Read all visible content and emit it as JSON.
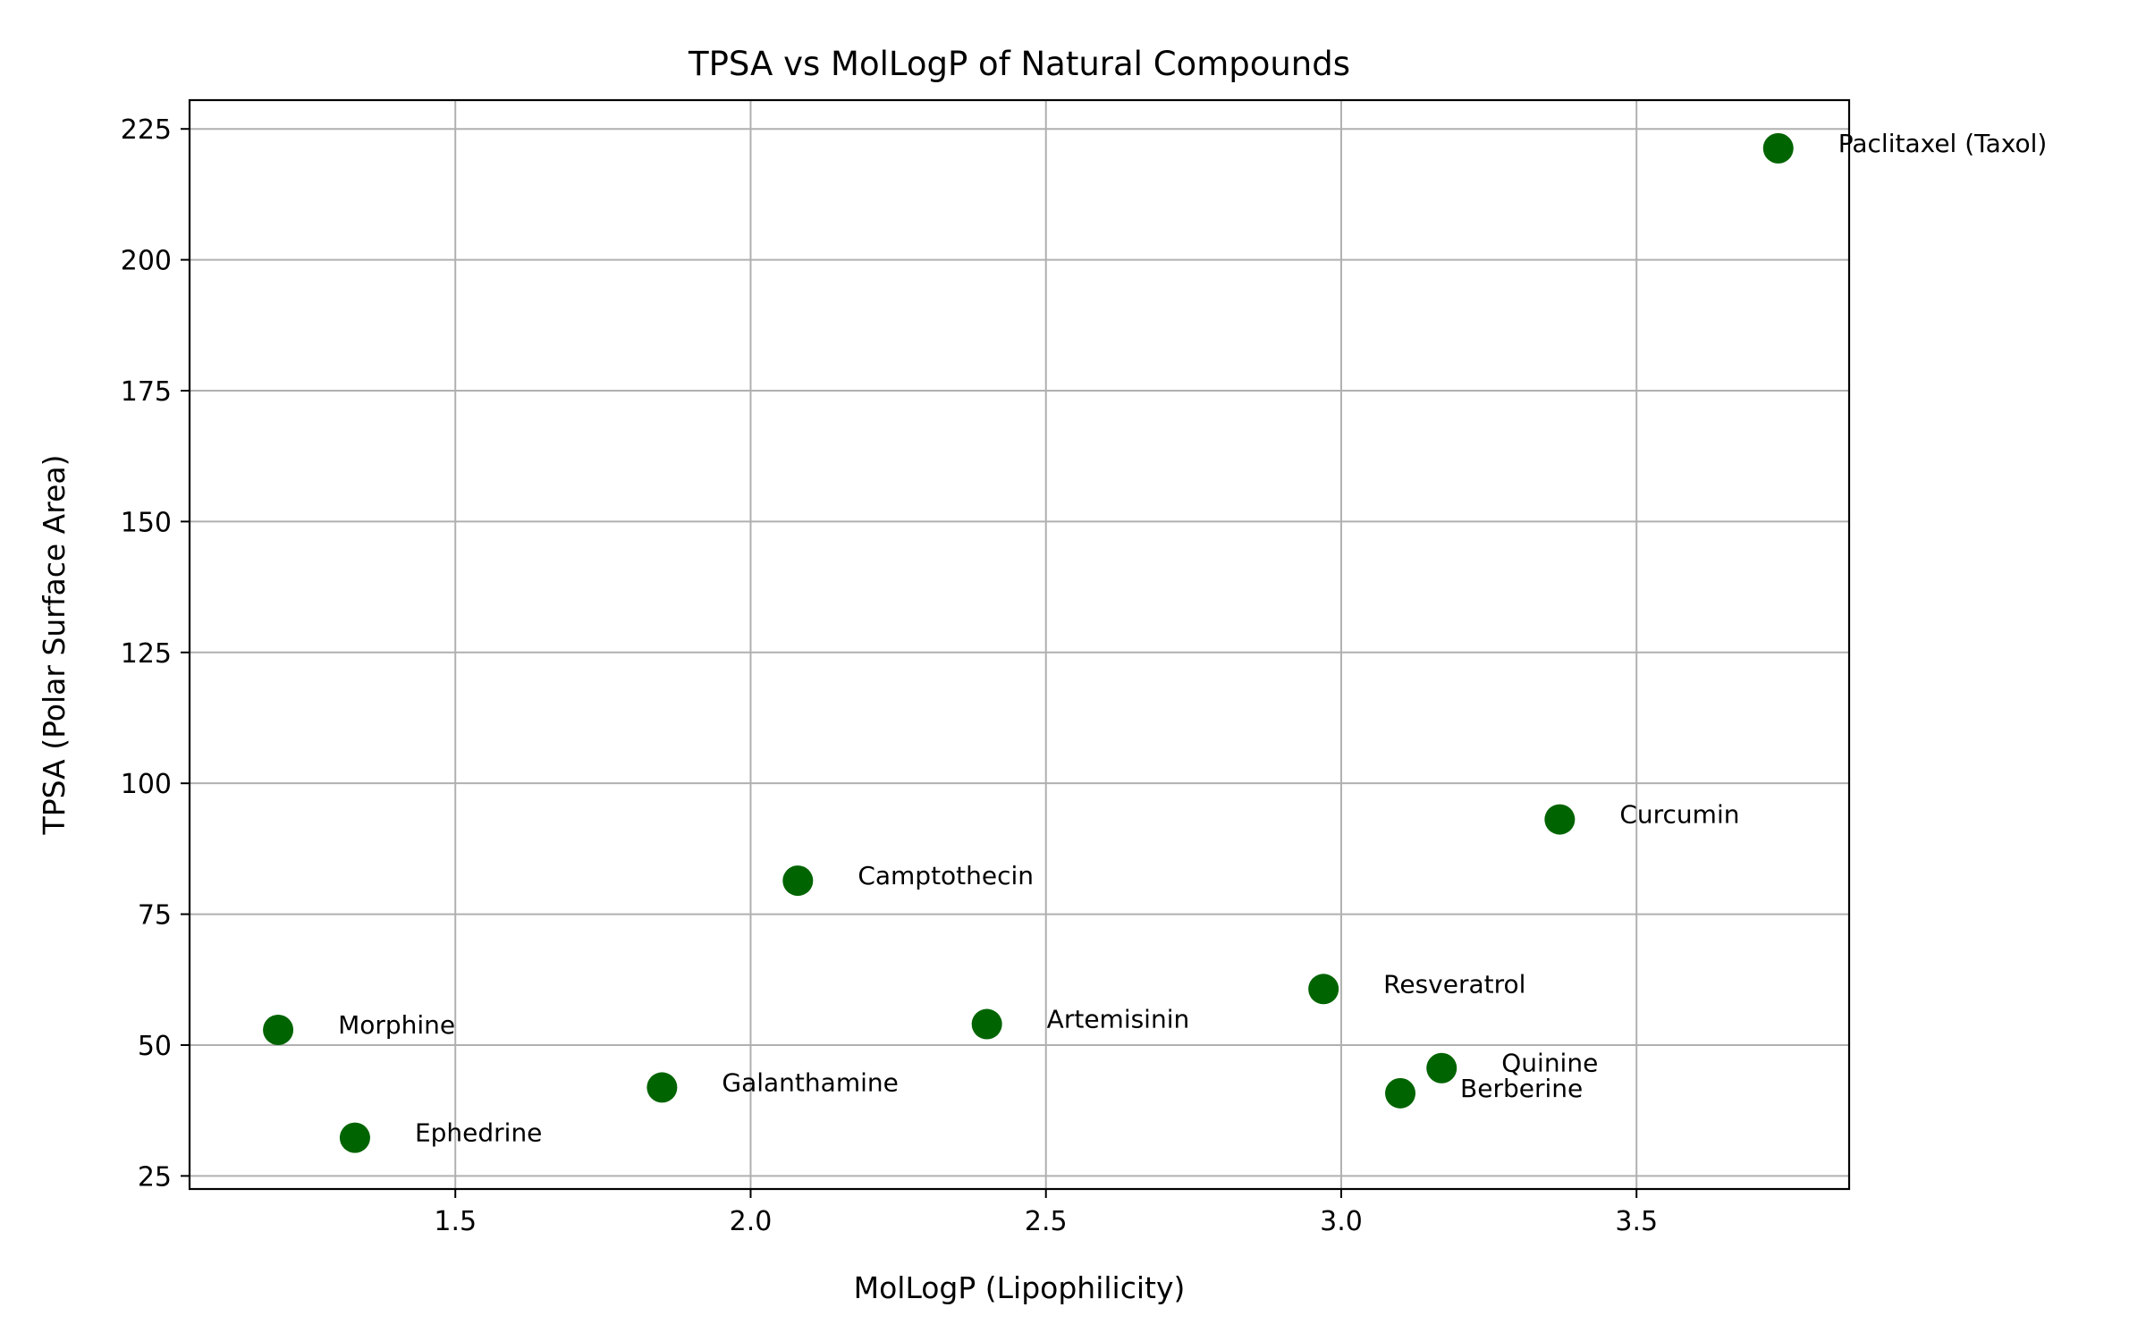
{
  "chart_data": {
    "type": "scatter",
    "title": "TPSA vs MolLogP of Natural Compounds",
    "xlabel": "MolLogP (Lipophilicity)",
    "ylabel": "TPSA (Polar Surface Area)",
    "xlim": [
      1.05,
      3.86
    ],
    "ylim": [
      22.5,
      230.5
    ],
    "xticks": [
      1.5,
      2.0,
      2.5,
      3.0,
      3.5
    ],
    "xtick_labels": [
      "1.5",
      "2.0",
      "2.5",
      "3.0",
      "3.5"
    ],
    "yticks": [
      25,
      50,
      75,
      100,
      125,
      150,
      175,
      200,
      225
    ],
    "ytick_labels": [
      "25",
      "50",
      "75",
      "100",
      "125",
      "150",
      "175",
      "200",
      "225"
    ],
    "grid": true,
    "marker_color": "#006400",
    "points": [
      {
        "label": "Morphine",
        "x": 1.2,
        "y": 52.9
      },
      {
        "label": "Ephedrine",
        "x": 1.33,
        "y": 32.3
      },
      {
        "label": "Galanthamine",
        "x": 1.85,
        "y": 41.9
      },
      {
        "label": "Camptothecin",
        "x": 2.08,
        "y": 81.4
      },
      {
        "label": "Artemisinin",
        "x": 2.4,
        "y": 54.0
      },
      {
        "label": "Resveratrol",
        "x": 2.97,
        "y": 60.7
      },
      {
        "label": "Berberine",
        "x": 3.1,
        "y": 40.8
      },
      {
        "label": "Quinine",
        "x": 3.17,
        "y": 45.6
      },
      {
        "label": "Curcumin",
        "x": 3.37,
        "y": 93.1
      },
      {
        "label": "Paclitaxel (Taxol)",
        "x": 3.74,
        "y": 221.3
      }
    ]
  }
}
